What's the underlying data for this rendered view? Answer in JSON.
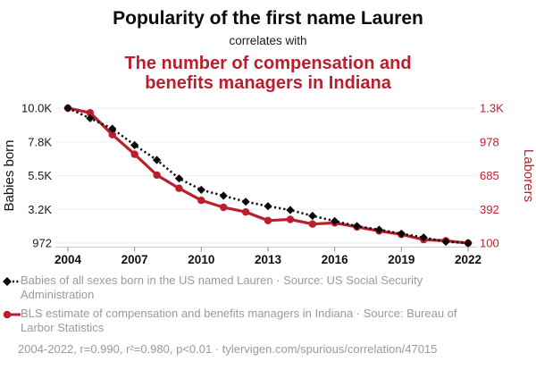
{
  "header": {
    "title": "Popularity of the first name Lauren",
    "connector": "correlates with",
    "red_line1": "The number of compensation and",
    "red_line2": "benefits managers in Indiana",
    "accent_color": "#bb1e2d"
  },
  "chart_data": {
    "type": "line",
    "title": "Popularity of the first name Lauren correlates with The number of compensation and benefits managers in Indiana",
    "grid": true,
    "legend_position": "bottom",
    "x": [
      2004,
      2005,
      2006,
      2007,
      2008,
      2009,
      2010,
      2011,
      2012,
      2013,
      2014,
      2015,
      2016,
      2017,
      2018,
      2019,
      2020,
      2021,
      2022
    ],
    "x_ticks": [
      2004,
      2007,
      2010,
      2013,
      2016,
      2019,
      2022
    ],
    "left_axis": {
      "label": "Babies born",
      "tick_labels": [
        "10.0K",
        "7.8K",
        "5.5K",
        "3.2K",
        "972"
      ],
      "min": 972,
      "max": 10030,
      "color": "#1a1a1a"
    },
    "right_axis": {
      "label": "Laborers",
      "tick_labels": [
        "1.3K",
        "978",
        "685",
        "392",
        "100"
      ],
      "min": 100,
      "max": 1270,
      "color": "#bb1e2d"
    },
    "series": [
      {
        "id": "babies",
        "name": "Babies of all sexes born in the US named Lauren",
        "axis": "left",
        "color": "#0a0a0a",
        "line_style": "dotted",
        "marker": "diamond",
        "values": [
          10030,
          9350,
          8650,
          7550,
          6550,
          5310,
          4550,
          4150,
          3750,
          3450,
          3190,
          2800,
          2450,
          2110,
          1870,
          1600,
          1350,
          1060,
          972
        ]
      },
      {
        "id": "laborers",
        "name": "BLS estimate of compensation and benefits managers in Indiana",
        "axis": "right",
        "color": "#bb1e2d",
        "line_style": "solid",
        "marker": "circle",
        "values": [
          1270,
          1230,
          1040,
          870,
          690,
          575,
          470,
          410,
          370,
          295,
          305,
          265,
          275,
          240,
          205,
          175,
          130,
          120,
          100
        ]
      }
    ]
  },
  "legend": {
    "text_color": "#9a9a9a",
    "items": [
      {
        "marker": "black-diamond-dotted",
        "text": "Babies of all sexes born in the US named Lauren · Source: US Social Security Administration"
      },
      {
        "marker": "red-circle-solid",
        "text": "BLS estimate of compensation and benefits managers in Indiana · Source: Bureau of Larbor Statistics"
      }
    ]
  },
  "footer": {
    "text": "2004-2022, r=0.990, r²=0.980, p<0.01 · tylervigen.com/spurious/correlation/47015"
  }
}
